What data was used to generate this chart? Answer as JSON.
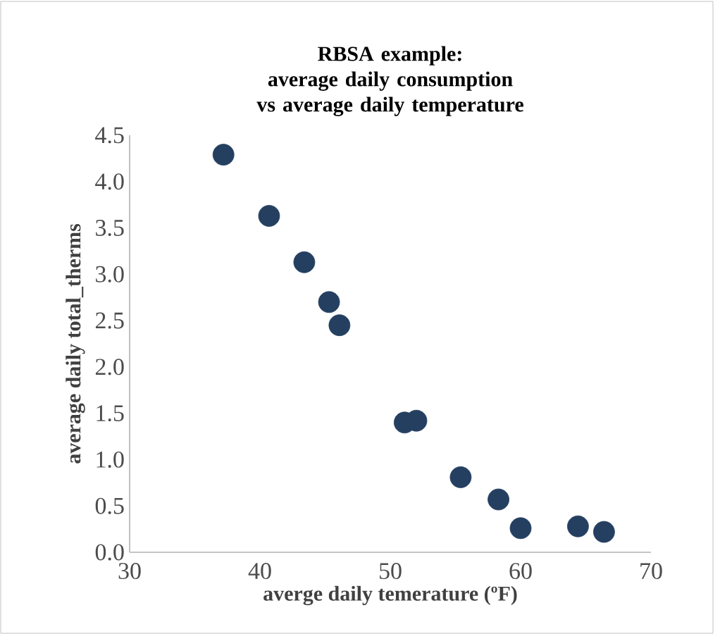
{
  "chart_data": {
    "type": "scatter",
    "title": "RBSA example:\naverage daily consumption vs average daily temperature",
    "xlabel": "averge daily temerature (ºF)",
    "ylabel": "average daily total_therms",
    "x": [
      37.2,
      40.7,
      43.4,
      45.3,
      46.1,
      51.1,
      52.0,
      55.4,
      58.3,
      60.0,
      64.4,
      66.4
    ],
    "values": [
      4.29,
      3.63,
      3.13,
      2.7,
      2.45,
      1.4,
      1.42,
      0.81,
      0.57,
      0.26,
      0.28,
      0.22
    ],
    "color": "#243f60",
    "marker": "circle",
    "grid": false,
    "xlim": [
      30,
      70
    ],
    "xticks": [
      30,
      40,
      50,
      60,
      70
    ],
    "ylim": [
      0,
      4.5
    ],
    "yticks": [
      {
        "value": 0,
        "label": "0.0"
      },
      {
        "value": 0.5,
        "label": "0.5"
      },
      {
        "value": 1,
        "label": "1.0"
      },
      {
        "value": 1.5,
        "label": "1.5"
      },
      {
        "value": 2,
        "label": "2.0"
      },
      {
        "value": 2.5,
        "label": "2.5"
      },
      {
        "value": 3,
        "label": "3.0"
      },
      {
        "value": 3.5,
        "label": "3.5"
      },
      {
        "value": 4,
        "label": "4.0"
      },
      {
        "value": 4.5,
        "label": "4.5"
      }
    ]
  }
}
